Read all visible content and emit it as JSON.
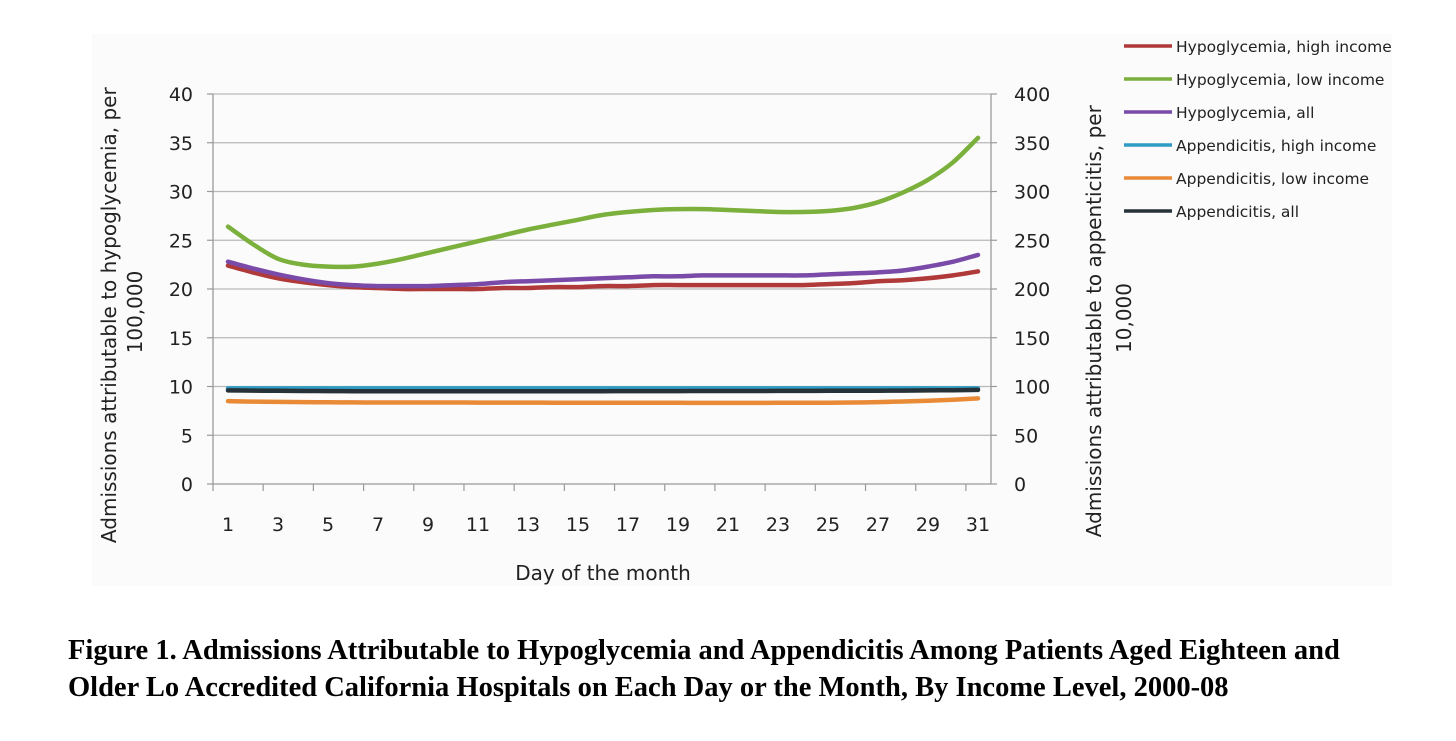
{
  "chart_data": {
    "type": "line",
    "title": "",
    "xlabel": "Day of the month",
    "ylabel_left": "Admissions attributable to hypoglycemia, per 100,000",
    "ylabel_left_lines": [
      "Admissions attributable to hypoglycemia, per",
      "100,000"
    ],
    "ylabel_right": "Admissions attributable to appenticitis, per 10,000",
    "ylabel_right_lines": [
      "Admissions attributable to appenticitis, per",
      "10,000"
    ],
    "x": [
      1,
      2,
      3,
      4,
      5,
      6,
      7,
      8,
      9,
      10,
      11,
      12,
      13,
      14,
      15,
      16,
      17,
      18,
      19,
      20,
      21,
      22,
      23,
      24,
      25,
      26,
      27,
      28,
      29,
      30,
      31
    ],
    "xticks": [
      "1",
      "3",
      "5",
      "7",
      "9",
      "11",
      "13",
      "15",
      "17",
      "19",
      "21",
      "23",
      "25",
      "27",
      "29",
      "31"
    ],
    "ylim_left": [
      0,
      40
    ],
    "yticks_left": [
      "0",
      "5",
      "10",
      "15",
      "20",
      "25",
      "30",
      "35",
      "40"
    ],
    "ylim_right": [
      0,
      400
    ],
    "yticks_right": [
      "0",
      "50",
      "100",
      "150",
      "200",
      "250",
      "300",
      "350",
      "400"
    ],
    "grid": "horizontal",
    "legend_position": "top-right",
    "series": [
      {
        "name": "Hypoglycemia, high income",
        "axis": "left",
        "color": "#b03a3a",
        "values": [
          22.4,
          21.7,
          21.1,
          20.7,
          20.4,
          20.2,
          20.1,
          20.0,
          20.0,
          20.0,
          20.0,
          20.1,
          20.1,
          20.2,
          20.2,
          20.3,
          20.3,
          20.4,
          20.4,
          20.4,
          20.4,
          20.4,
          20.4,
          20.4,
          20.5,
          20.6,
          20.8,
          20.9,
          21.1,
          21.4,
          21.8
        ]
      },
      {
        "name": "Hypoglycemia, low income",
        "axis": "left",
        "color": "#7bb03c",
        "values": [
          26.4,
          24.6,
          23.1,
          22.5,
          22.3,
          22.3,
          22.6,
          23.1,
          23.7,
          24.3,
          24.9,
          25.5,
          26.1,
          26.6,
          27.1,
          27.6,
          27.9,
          28.1,
          28.2,
          28.2,
          28.1,
          28.0,
          27.9,
          27.9,
          28.0,
          28.3,
          28.9,
          29.9,
          31.2,
          33.0,
          35.5
        ]
      },
      {
        "name": "Hypoglycemia, all",
        "axis": "left",
        "color": "#7a4aa8",
        "values": [
          22.8,
          22.1,
          21.5,
          21.0,
          20.6,
          20.4,
          20.3,
          20.3,
          20.3,
          20.4,
          20.5,
          20.7,
          20.8,
          20.9,
          21.0,
          21.1,
          21.2,
          21.3,
          21.3,
          21.4,
          21.4,
          21.4,
          21.4,
          21.4,
          21.5,
          21.6,
          21.7,
          21.9,
          22.3,
          22.8,
          23.5
        ]
      },
      {
        "name": "Appendicitis, high income",
        "axis": "right",
        "color": "#2e9cc4",
        "values": [
          98,
          98,
          98,
          98,
          98,
          98,
          98,
          98,
          98,
          98,
          98,
          98,
          98,
          98,
          98,
          98,
          98,
          98,
          98,
          98,
          98,
          98,
          98,
          98,
          98,
          98,
          98,
          98,
          98,
          98,
          98
        ]
      },
      {
        "name": "Appendicitis, low income",
        "axis": "right",
        "color": "#e98a37",
        "values": [
          85,
          84.5,
          84.2,
          84,
          83.8,
          83.7,
          83.6,
          83.6,
          83.6,
          83.6,
          83.5,
          83.5,
          83.5,
          83.4,
          83.4,
          83.3,
          83.3,
          83.3,
          83.3,
          83.2,
          83.2,
          83.2,
          83.3,
          83.3,
          83.4,
          83.6,
          84,
          84.6,
          85.4,
          86.4,
          87.8
        ]
      },
      {
        "name": "Appendicitis, all",
        "axis": "right",
        "color": "#263238",
        "values": [
          96,
          95.8,
          95.6,
          95.4,
          95.3,
          95.2,
          95.2,
          95.2,
          95.2,
          95.2,
          95.2,
          95.2,
          95.2,
          95.2,
          95.2,
          95.2,
          95.3,
          95.3,
          95.3,
          95.4,
          95.4,
          95.4,
          95.5,
          95.5,
          95.6,
          95.6,
          95.7,
          95.8,
          96,
          96.2,
          96.5
        ]
      }
    ]
  },
  "caption": {
    "text": "Figure 1. Admissions Attributable to Hypoglycemia and Appendicitis Among Patients Aged Eighteen and Older Lo Accredited California Hospitals on Each Day or the Month, By Income Level, 2000-08"
  }
}
